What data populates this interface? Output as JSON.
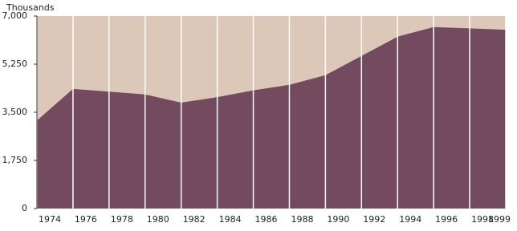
{
  "chart_data": {
    "type": "area",
    "y_axis_label": "Thousands",
    "categories": [
      "1974",
      "1976",
      "1978",
      "1980",
      "1982",
      "1984",
      "1986",
      "1988",
      "1990",
      "1992",
      "1994",
      "1996",
      "1998",
      "1999"
    ],
    "values": [
      3200,
      4350,
      4250,
      4150,
      3850,
      4050,
      4300,
      4500,
      4850,
      5550,
      6250,
      6600,
      6550,
      6500
    ],
    "color": "#734a5e",
    "background_color": "#dcc8b8",
    "ylim": [
      0,
      7000
    ],
    "yticks": [
      0,
      {
        "value": 1750,
        "label": "1,750"
      },
      {
        "value": 3500,
        "label": "3,500"
      },
      {
        "value": 5250,
        "label": "5,250"
      },
      {
        "value": 7000,
        "label": "7,000"
      }
    ]
  }
}
